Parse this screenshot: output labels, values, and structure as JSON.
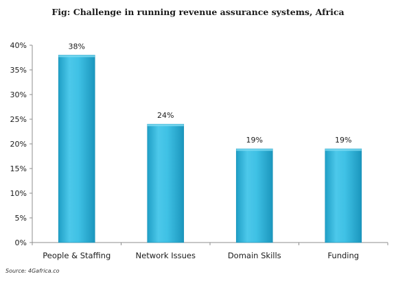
{
  "chart_data": {
    "type": "bar",
    "title": "Fig: Challenge in running revenue assurance systems, Africa",
    "categories": [
      "People & Staffing",
      "Network Issues",
      "Domain Skills",
      "Funding"
    ],
    "values": [
      38,
      24,
      19,
      19
    ],
    "data_labels": [
      "38%",
      "24%",
      "19%",
      "19%"
    ],
    "ylim": [
      0,
      40
    ],
    "yticks": [
      0,
      5,
      10,
      15,
      20,
      25,
      30,
      35,
      40
    ],
    "ytick_labels": [
      "0%",
      "5%",
      "10%",
      "15%",
      "20%",
      "25%",
      "30%",
      "35%",
      "40%"
    ],
    "xlabel": "",
    "ylabel": "",
    "grid": false,
    "legend": "none",
    "bar_color": "#3bbde0"
  },
  "source": "Source: 4Gafrica.co"
}
